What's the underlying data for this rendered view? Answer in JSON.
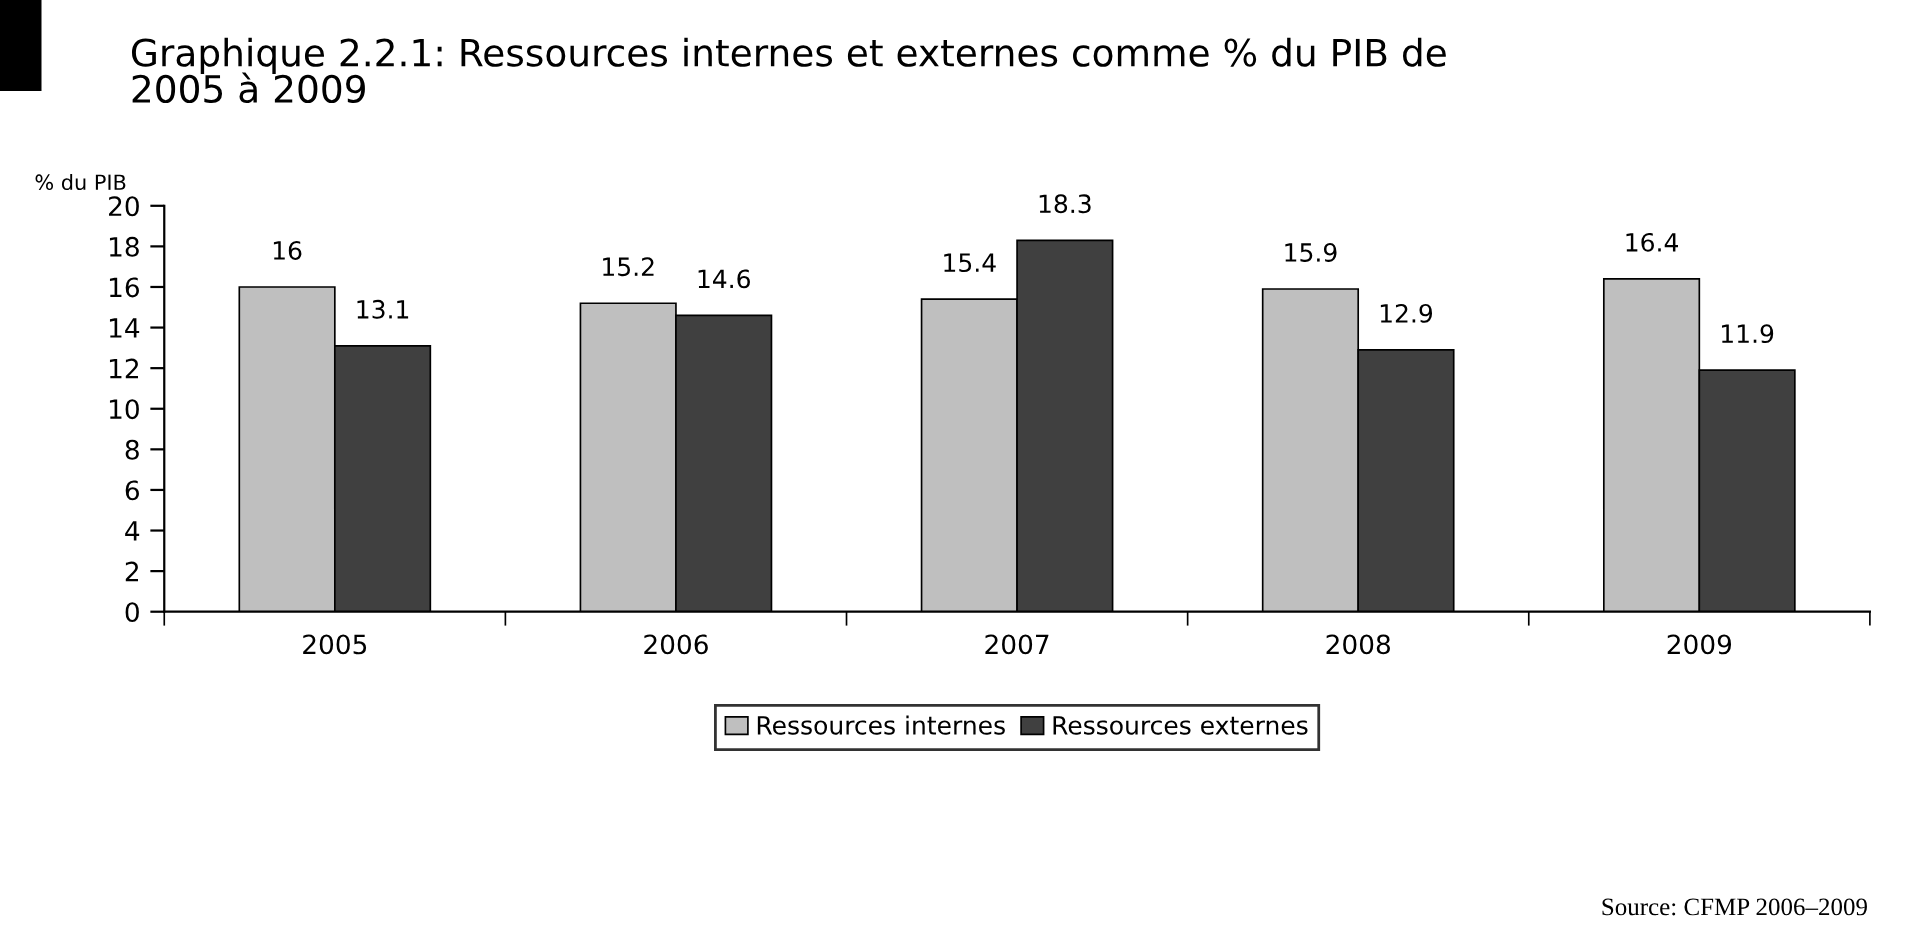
{
  "chart_data": {
    "type": "bar",
    "title": "Graphique 2.2.1: Ressources internes et externes comme % du PIB de\n2005 à 2009",
    "ylabel": "% du PIB",
    "categories": [
      "2005",
      "2006",
      "2007",
      "2008",
      "2009"
    ],
    "series": [
      {
        "name": "Ressources internes",
        "color": "#bfbfbf",
        "values": [
          16,
          15.2,
          15.4,
          15.9,
          16.4
        ]
      },
      {
        "name": "Ressources externes",
        "color": "#404040",
        "values": [
          13.1,
          14.6,
          18.3,
          12.9,
          11.9
        ]
      }
    ],
    "ylim": [
      0,
      20
    ],
    "yticks": [
      0,
      2,
      4,
      6,
      8,
      10,
      12,
      14,
      16,
      18,
      20
    ],
    "grid": false,
    "legend": "bottom",
    "data_labels": true,
    "annotations": [
      "Source: CFMP 2006–2009"
    ]
  }
}
